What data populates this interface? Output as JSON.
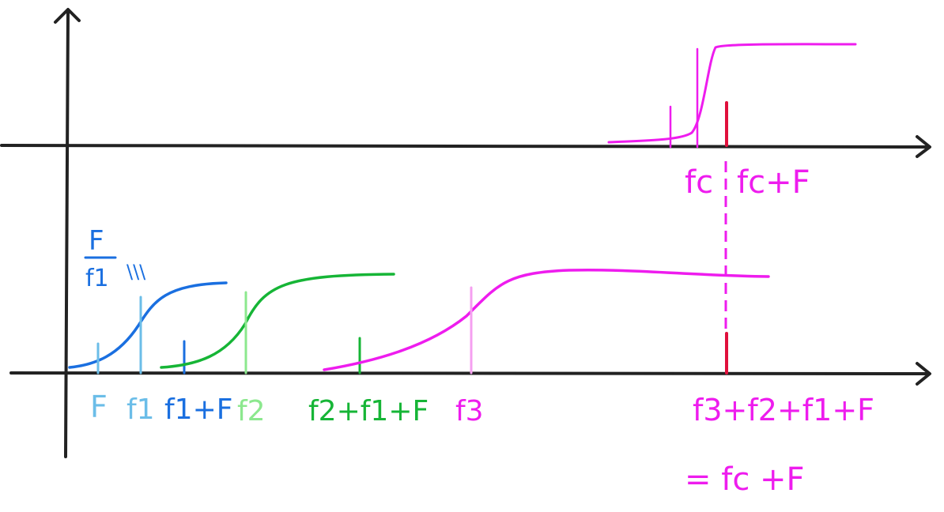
{
  "colors": {
    "axis": "#222222",
    "blue": "#1a6fe0",
    "light_blue": "#6bbde8",
    "green": "#16b536",
    "light_green": "#8ce88e",
    "magenta": "#ee1cee",
    "light_magenta": "#f59ff0",
    "red": "#e0103c"
  },
  "top_panel": {
    "label_fc": "fc",
    "label_fc_plus_F": "fc+F"
  },
  "bottom_panel": {
    "ratio_numerator": "F",
    "ratio_denominator": "f1",
    "ratio_suffix": "\\\\\\",
    "labels": {
      "F": "F",
      "f1": "f1",
      "f1_plus_F": "f1+F",
      "f2": "f2",
      "f2_plus_f1_plus_F": "f2+f1+F",
      "f3": "f3",
      "sum": "f3+f2+f1+F",
      "equals": "= fc +F"
    }
  }
}
